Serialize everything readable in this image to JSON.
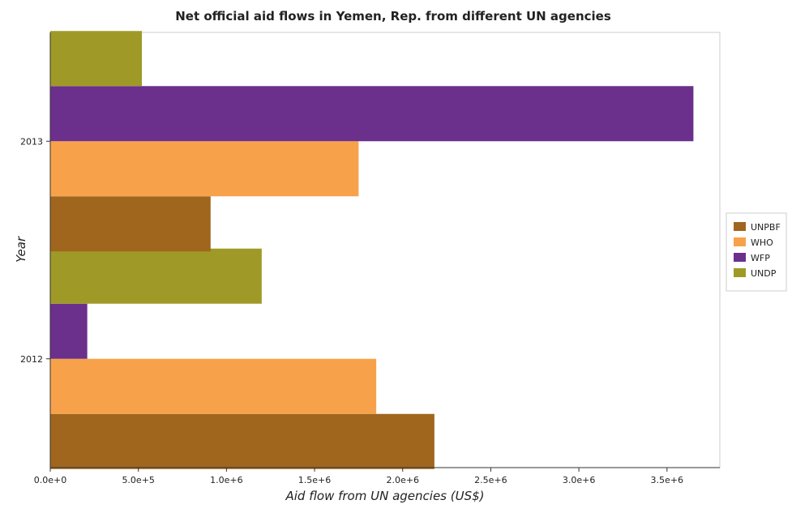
{
  "chart_data": {
    "type": "bar",
    "orientation": "horizontal",
    "title": "Net official aid flows in Yemen, Rep. from different UN agencies",
    "xlabel": "Aid flow from UN agencies (US$)",
    "ylabel": "Year",
    "categories": [
      "2012",
      "2013"
    ],
    "xlim": [
      0,
      3800000
    ],
    "xticks": [
      0,
      500000,
      1000000,
      1500000,
      2000000,
      2500000,
      3000000,
      3500000
    ],
    "xtick_labels": [
      "0.0e+0",
      "5.0e+5",
      "1.0e+6",
      "1.5e+6",
      "2.0e+6",
      "2.5e+6",
      "3.0e+6",
      "3.5e+6"
    ],
    "grid": false,
    "legend_position": "right",
    "series": [
      {
        "name": "UNPBF",
        "color": "#a0661e",
        "values": [
          2180000,
          910000
        ]
      },
      {
        "name": "WHO",
        "color": "#f7a24a",
        "values": [
          1850000,
          1750000
        ]
      },
      {
        "name": "WFP",
        "color": "#6b2f8c",
        "values": [
          210000,
          3650000
        ]
      },
      {
        "name": "UNDP",
        "color": "#9f9a27",
        "values": [
          1200000,
          520000
        ]
      }
    ]
  }
}
